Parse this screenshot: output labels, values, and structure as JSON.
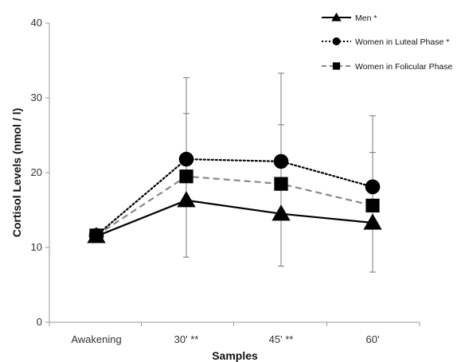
{
  "chart_data": {
    "type": "line",
    "xlabel": "Samples",
    "ylabel": "Cortisol Levels (nmol / l)",
    "categories": [
      "Awakening",
      "30' **",
      "45' **",
      "60'"
    ],
    "ylim": [
      0,
      40
    ],
    "yticks": [
      0,
      10,
      20,
      30,
      40
    ],
    "grid": false,
    "legend_position": "top-right",
    "series": [
      {
        "name": "Men *",
        "values": [
          11.5,
          16.3,
          14.5,
          13.3
        ],
        "marker": "triangle",
        "line_style": "solid",
        "color": "#000000"
      },
      {
        "name": "Women in Luteal Phase *",
        "values": [
          11.6,
          21.8,
          21.5,
          18.1
        ],
        "marker": "circle",
        "line_style": "dotted",
        "color": "#000000"
      },
      {
        "name": "Women in Folicular Phase",
        "values": [
          11.6,
          19.5,
          18.5,
          15.6
        ],
        "marker": "square",
        "line_style": "dashed",
        "color": "#000000",
        "line_color": "#888888"
      }
    ],
    "error_bars": [
      {
        "category": "30' **",
        "upper": [
          27.9,
          32.7
        ],
        "lower": 8.7
      },
      {
        "category": "45' **",
        "upper": [
          26.4,
          33.3
        ],
        "lower": 7.5
      },
      {
        "category": "60'",
        "upper": [
          22.7,
          27.6
        ],
        "lower": 6.7
      }
    ]
  }
}
